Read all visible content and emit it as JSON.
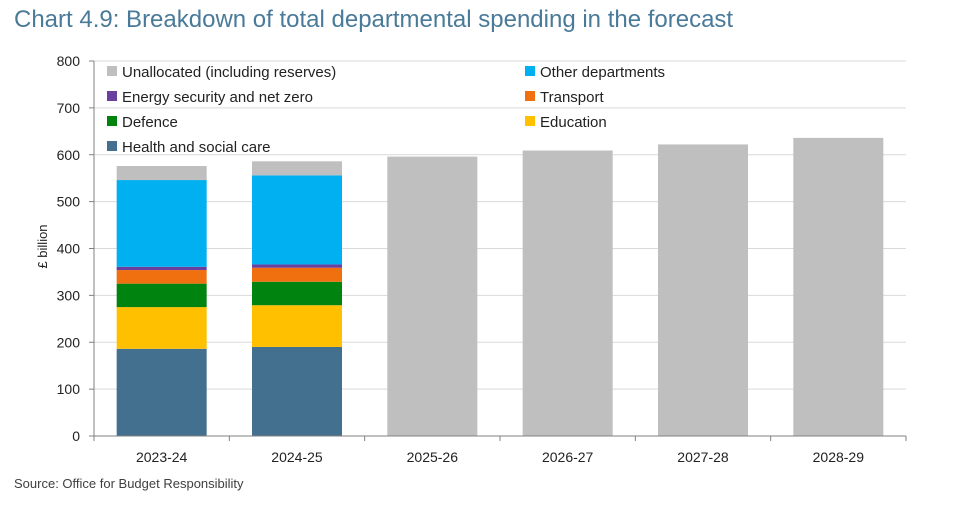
{
  "title": "Chart 4.9: Breakdown of total departmental spending in the forecast",
  "source": "Source: Office for Budget Responsibility",
  "chart_data": {
    "type": "bar",
    "stacked": true,
    "categories": [
      "2023-24",
      "2024-25",
      "2025-26",
      "2026-27",
      "2027-28",
      "2028-29"
    ],
    "ylabel": "£ billion",
    "ylim": [
      0,
      800
    ],
    "yticks": [
      0,
      100,
      200,
      300,
      400,
      500,
      600,
      700,
      800
    ],
    "grid": true,
    "legend_position": "top-left",
    "series": [
      {
        "name": "Health and social care",
        "color": "#44708f",
        "values": [
          186,
          190,
          null,
          null,
          null,
          null
        ]
      },
      {
        "name": "Education",
        "color": "#ffc000",
        "values": [
          89,
          89,
          null,
          null,
          null,
          null
        ]
      },
      {
        "name": "Defence",
        "color": "#00830f",
        "values": [
          50,
          50,
          null,
          null,
          null,
          null
        ]
      },
      {
        "name": "Transport",
        "color": "#f07010",
        "values": [
          29,
          30,
          null,
          null,
          null,
          null
        ]
      },
      {
        "name": "Energy security and net zero",
        "color": "#6a3fa0",
        "values": [
          7,
          7,
          null,
          null,
          null,
          null
        ]
      },
      {
        "name": "Other departments",
        "color": "#00b0f0",
        "values": [
          185,
          190,
          null,
          null,
          null,
          null
        ]
      },
      {
        "name": "Unallocated (including reserves)",
        "color": "#bfbfbf",
        "values": [
          30,
          30,
          596,
          609,
          622,
          636
        ]
      }
    ],
    "legend_order": [
      "Unallocated (including reserves)",
      "Other departments",
      "Energy security and net zero",
      "Transport",
      "Defence",
      "Education",
      "Health and social care"
    ]
  }
}
